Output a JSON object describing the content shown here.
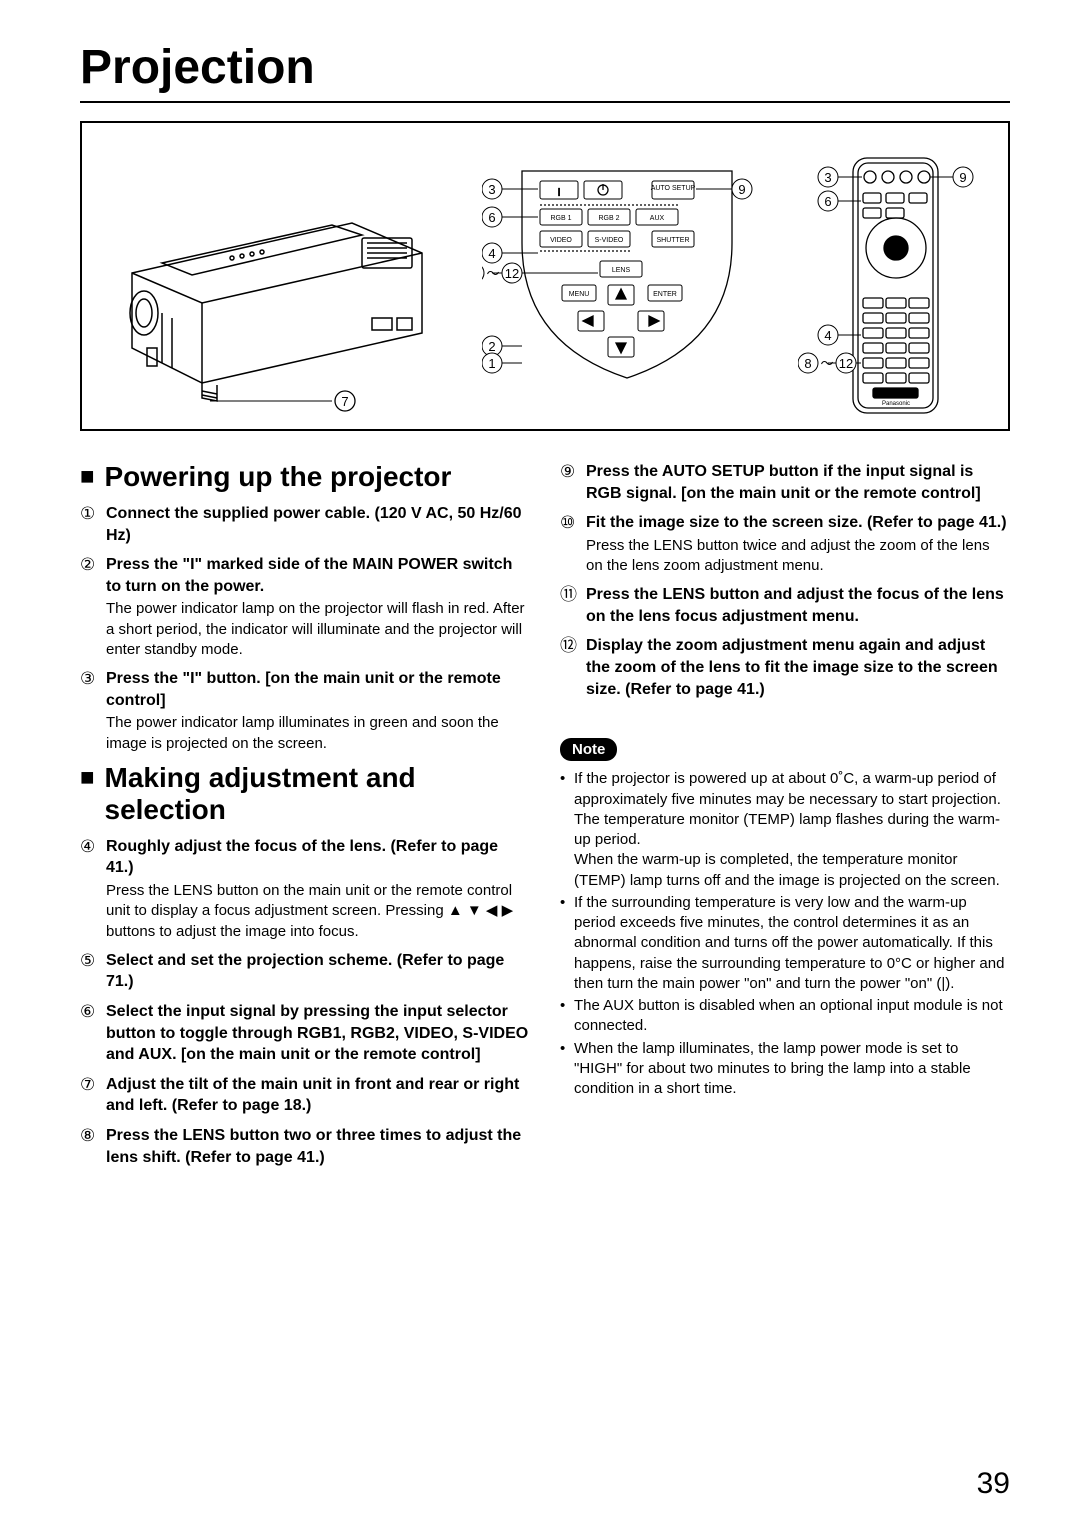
{
  "pageTitle": "Projection",
  "pageNumber": "39",
  "sections": {
    "powerUp": {
      "heading": "Powering up the projector",
      "steps": [
        {
          "n": "1",
          "bold": "Connect the supplied power cable. (120 V AC, 50 Hz/60 Hz)",
          "desc": ""
        },
        {
          "n": "2",
          "bold": "Press the \"I\" marked side of the MAIN POWER switch to turn on the power.",
          "desc": "The power indicator lamp on the projector will flash in red.  After a short period, the indicator will illuminate and the projector will enter standby mode."
        },
        {
          "n": "3",
          "bold": "Press the \"I\" button. [on the main unit or the remote control]",
          "desc": "The power indicator lamp illuminates in green and soon the image is projected on the screen."
        }
      ]
    },
    "adjust": {
      "heading": "Making adjustment and selection",
      "steps": [
        {
          "n": "4",
          "bold": "Roughly adjust the focus of the lens. (Refer to page 41.)",
          "desc": "Press the LENS button on the main unit or the remote control unit to display a focus adjustment screen.  Pressing  ▲  ▼  ◀  ▶  buttons to adjust the image into focus."
        },
        {
          "n": "5",
          "bold": "Select and set the projection scheme. (Refer to page 71.)",
          "desc": ""
        },
        {
          "n": "6",
          "bold": "Select the input signal by pressing the input selector button to toggle through RGB1, RGB2, VIDEO, S-VIDEO and AUX. [on the main unit or the remote control]",
          "desc": ""
        },
        {
          "n": "7",
          "bold": "Adjust the tilt of the main unit in front and rear or right and left. (Refer to page 18.)",
          "desc": ""
        },
        {
          "n": "8",
          "bold": "Press the LENS button two or three times to adjust the lens shift. (Refer to page 41.)",
          "desc": ""
        }
      ]
    },
    "right": {
      "steps": [
        {
          "n": "9",
          "bold": "Press the AUTO SETUP button if the input signal is RGB signal. [on the main unit or the remote control]",
          "desc": ""
        },
        {
          "n": "10",
          "bold": "Fit the image size to the screen size. (Refer to page 41.)",
          "desc": "Press the LENS button twice and adjust the zoom of the lens on the lens zoom adjustment menu."
        },
        {
          "n": "11",
          "bold": "Press the LENS button and adjust the focus of the lens on the lens focus adjustment menu.",
          "desc": ""
        },
        {
          "n": "12",
          "bold": "Display the zoom adjustment menu again and adjust the zoom of the lens to fit the image size to the screen size. (Refer to page 41.)",
          "desc": ""
        }
      ]
    }
  },
  "note": {
    "label": "Note",
    "items": [
      "If the projector is powered up at about 0˚C, a warm-up period of approximately five minutes may be necessary to start projection.\nThe temperature monitor (TEMP) lamp flashes during the warm-up period.\nWhen the warm-up is completed, the temperature monitor (TEMP) lamp turns off and the image is projected on the screen.",
      "If the surrounding temperature is very low and the warm-up period exceeds five minutes, the control determines it as an abnormal condition and turns off the power automatically. If this happens, raise the surrounding temperature to 0°C or higher and then turn the main power \"on\" and turn the power \"on\" (|).",
      "The AUX button is disabled when an optional input module is not connected.",
      "When the lamp illuminates, the lamp power mode is set to \"HIGH\" for about two minutes to bring the lamp into a stable condition in a short time."
    ]
  },
  "diagram": {
    "panelButtons": {
      "row1": [
        "",
        "",
        "AUTO SETUP"
      ],
      "row2": [
        "RGB 1",
        "RGB 2",
        "AUX"
      ],
      "row3": [
        "VIDEO",
        "S-VIDEO",
        "SHUTTER"
      ],
      "lens": "LENS",
      "menu": "MENU",
      "enter": "ENTER"
    },
    "callouts": {
      "panel": {
        "c3": "3",
        "c9": "9",
        "c6": "6",
        "c4": "4",
        "c8_12": "8 ～ 12",
        "c2": "2",
        "c1": "1",
        "c7": "7"
      },
      "remote": {
        "c3": "3",
        "c9": "9",
        "c6": "6",
        "c4": "4",
        "c8_12": "8 ～ 12"
      }
    }
  }
}
